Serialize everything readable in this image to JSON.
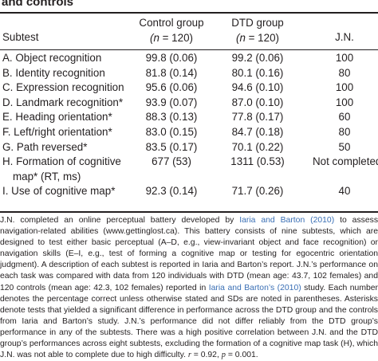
{
  "caption": {
    "tail": "and controls"
  },
  "table": {
    "headers": {
      "subtest": "Subtest",
      "control": "Control group",
      "control_n_italic": "(n",
      "control_n_rest": " = 120)",
      "dtd": "DTD group",
      "dtd_n_italic": "(n",
      "dtd_n_rest": " = 120)",
      "jn": "J.N."
    },
    "rows": [
      {
        "subtest": "A. Object recognition",
        "control": "99.8 (0.06)",
        "dtd": "99.2 (0.06)",
        "jn": "100"
      },
      {
        "subtest": "B. Identity recognition",
        "control": "81.8 (0.14)",
        "dtd": "80.1 (0.16)",
        "jn": "80"
      },
      {
        "subtest": "C. Expression recognition",
        "control": "95.6 (0.06)",
        "dtd": "94.6 (0.10)",
        "jn": "100"
      },
      {
        "subtest": "D. Landmark recognition*",
        "control": "93.9 (0.07)",
        "dtd": "87.0 (0.10)",
        "jn": "100"
      },
      {
        "subtest": "E. Heading orientation*",
        "control": "88.3 (0.13)",
        "dtd": "77.8 (0.17)",
        "jn": "60"
      },
      {
        "subtest": "F. Left/right orientation*",
        "control": "83.0 (0.15)",
        "dtd": "84.7 (0.18)",
        "jn": "80"
      },
      {
        "subtest": "G. Path reversed*",
        "control": "83.5 (0.17)",
        "dtd": "70.1 (0.22)",
        "jn": "50"
      },
      {
        "subtest": "H. Formation of cognitive",
        "subtest_cont": "map* (RT, ms)",
        "control": "677 (53)",
        "dtd": "1311 (0.53)",
        "jn": "Not completed"
      },
      {
        "subtest": "I. Use of cognitive map*",
        "control": "92.3 (0.14)",
        "dtd": "71.7 (0.26)",
        "jn": "40"
      }
    ]
  },
  "note": {
    "t1": "J.N. completed an online perceptual battery developed by ",
    "l1": "Iaria and Barton (2010)",
    "t2": " to assess navigation-related abilities (www.gettinglost.ca). This battery consists of nine subtests, which are designed to test either basic perceptual (A–D, e.g., view-invariant object and face recognition) or navigation skills (E–I, e.g., test of forming a cognitive map or testing for egocentric orientation judgment). A description of each subtest is reported in Iaria and Barton’s report. J.N.’s performance on each task was compared with data from 120 individuals with DTD (mean age: 43.7, 102 females) and 120 controls (mean age: 42.3, 102 females) reported in ",
    "l2": "Iaria and Barton’s (2010)",
    "t3": " study. Each number denotes the percentage correct unless otherwise stated and SDs are noted in parentheses. Asterisks denote tests that yielded a significant difference in performance across the DTD group and the controls from Iaria and Barton’s study. J.N.’s performance did not differ reliably from the DTD group’s performance in any of the subtests. There was a high positive correlation between J.N. and the DTD group’s performances across eight subtests, excluding the formation of a cognitive map task (H), which J.N. was not able to complete due to high difficulty. ",
    "m1": "r",
    "t4": " = 0.92, ",
    "m2": "p",
    "t5": " = 0.001."
  }
}
